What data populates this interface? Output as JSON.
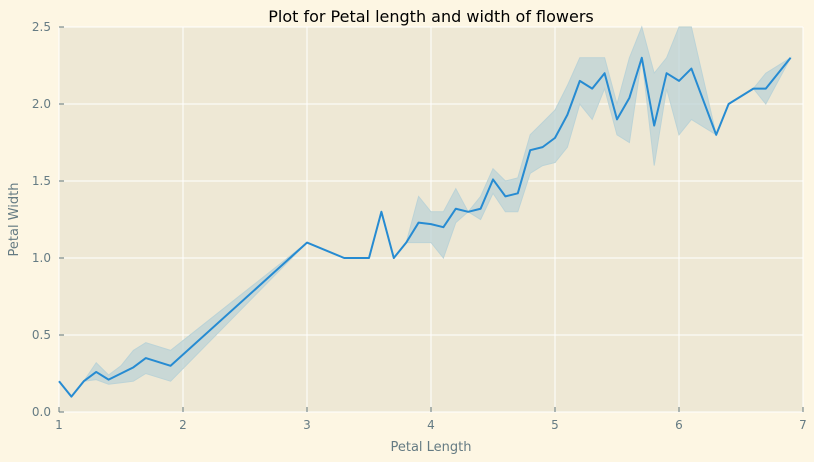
{
  "colors": {
    "figure_bg": "#fdf6e3",
    "axes_bg": "#eee8d5",
    "grid": "#ffffff",
    "line": "#268bd2",
    "band": "#bcd3d6",
    "text": "#657b83"
  },
  "chart_data": {
    "type": "line",
    "title": "Plot for Petal length and width of flowers",
    "xlabel": "Petal Length",
    "ylabel": "Petal Width",
    "xlim": [
      1,
      7
    ],
    "ylim": [
      0,
      2.5
    ],
    "xticks": [
      1,
      2,
      3,
      4,
      5,
      6,
      7
    ],
    "xtick_labels": [
      "1",
      "2",
      "3",
      "4",
      "5",
      "6",
      "7"
    ],
    "yticks": [
      0,
      0.5,
      1,
      1.5,
      2,
      2.5
    ],
    "ytick_labels": [
      "0.0",
      "0.5",
      "1.0",
      "1.5",
      "2.0",
      "2.5"
    ],
    "grid": true,
    "series": [
      {
        "x": [
          1.0,
          1.1,
          1.2,
          1.3,
          1.4,
          1.5,
          1.6,
          1.7,
          1.9,
          3.0,
          3.3,
          3.5,
          3.6,
          3.7,
          3.8,
          3.9,
          4.0,
          4.1,
          4.2,
          4.3,
          4.4,
          4.5,
          4.6,
          4.7,
          4.8,
          4.9,
          5.0,
          5.1,
          5.2,
          5.3,
          5.4,
          5.5,
          5.6,
          5.7,
          5.8,
          5.9,
          6.0,
          6.1,
          6.3,
          6.4,
          6.6,
          6.7,
          6.9
        ],
        "y": [
          0.2,
          0.1,
          0.2,
          0.26,
          0.21,
          0.25,
          0.29,
          0.35,
          0.3,
          1.1,
          1.0,
          1.0,
          1.3,
          1.0,
          1.1,
          1.23,
          1.22,
          1.2,
          1.32,
          1.3,
          1.32,
          1.51,
          1.4,
          1.42,
          1.7,
          1.72,
          1.78,
          1.93,
          2.15,
          2.1,
          2.2,
          1.9,
          2.04,
          2.3,
          1.86,
          2.2,
          2.15,
          2.23,
          1.8,
          2.0,
          2.1,
          2.1,
          2.3
        ],
        "lower": [
          0.2,
          0.1,
          0.2,
          0.21,
          0.18,
          0.19,
          0.2,
          0.25,
          0.2,
          1.1,
          1.0,
          1.0,
          1.3,
          1.0,
          1.1,
          1.1,
          1.1,
          1.0,
          1.23,
          1.3,
          1.25,
          1.42,
          1.3,
          1.3,
          1.55,
          1.6,
          1.62,
          1.72,
          2.0,
          1.9,
          2.1,
          1.8,
          1.75,
          2.3,
          1.6,
          2.1,
          1.8,
          1.9,
          1.8,
          2.0,
          2.1,
          2.0,
          2.3
        ],
        "upper": [
          0.2,
          0.1,
          0.2,
          0.32,
          0.24,
          0.3,
          0.4,
          0.45,
          0.4,
          1.1,
          1.0,
          1.0,
          1.3,
          1.0,
          1.1,
          1.4,
          1.3,
          1.3,
          1.45,
          1.3,
          1.4,
          1.58,
          1.5,
          1.52,
          1.8,
          1.88,
          1.96,
          2.12,
          2.3,
          2.3,
          2.3,
          2.0,
          2.3,
          2.5,
          2.2,
          2.3,
          2.5,
          2.5,
          1.8,
          2.0,
          2.1,
          2.2,
          2.3
        ]
      }
    ]
  }
}
